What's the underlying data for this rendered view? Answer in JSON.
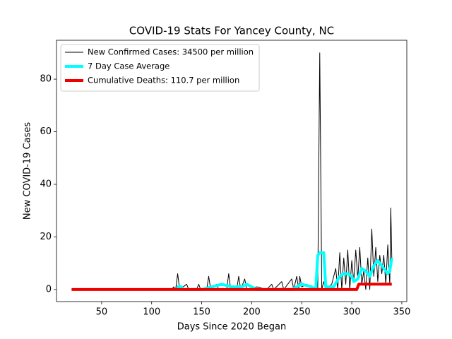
{
  "chart_data": {
    "type": "line",
    "title": "COVID-19 Stats For Yancey County, NC",
    "x_label": "Days Since 2020 Began",
    "y_label": "New COVID-19 Cases",
    "xlim": [
      4.9,
      355
    ],
    "ylim": [
      -4.6,
      94.8
    ],
    "xticks": [
      50,
      100,
      150,
      200,
      250,
      300,
      350
    ],
    "yticks": [
      0,
      20,
      40,
      60,
      80
    ],
    "legend": "upper left",
    "series": [
      {
        "name": "New Confirmed Cases: 34500 per million",
        "color": "#000000",
        "width": 1,
        "x": [
          20,
          120,
          122,
          124,
          126,
          128,
          135,
          137,
          145,
          147,
          149,
          155,
          157,
          159,
          165,
          167,
          175,
          177,
          179,
          185,
          187,
          189,
          193,
          195,
          205,
          215,
          220,
          222,
          230,
          232,
          240,
          242,
          245,
          247,
          248,
          250,
          255,
          262,
          266,
          268,
          270,
          272,
          274,
          280,
          284,
          286,
          288,
          290,
          292,
          294,
          296,
          298,
          300,
          302,
          304,
          306,
          308,
          310,
          312,
          314,
          316,
          318,
          320,
          322,
          324,
          326,
          328,
          330,
          332,
          334,
          336,
          338,
          339,
          340
        ],
        "values": [
          0,
          0,
          1,
          0,
          6,
          0,
          2,
          0,
          0,
          2,
          0,
          0,
          5,
          0,
          2,
          0,
          0,
          6,
          0,
          0,
          5,
          0,
          4,
          0,
          1,
          0,
          2,
          0,
          3,
          0,
          4,
          0,
          5,
          0,
          5,
          1,
          2,
          0,
          0,
          90,
          0,
          3,
          0,
          2,
          8,
          0,
          14,
          0,
          12,
          2,
          15,
          0,
          11,
          3,
          15,
          4,
          16,
          2,
          7,
          0,
          12,
          0,
          23,
          5,
          16,
          3,
          13,
          6,
          13,
          2,
          17,
          2,
          31,
          12
        ]
      },
      {
        "name": "7 Day Case Average",
        "color": "#00ffff",
        "width": 4,
        "x": [
          125,
          130,
          131,
          150,
          160,
          170,
          180,
          190,
          195,
          200,
          205,
          240,
          250,
          260,
          264,
          266,
          268,
          272,
          274,
          282,
          288,
          292,
          296,
          300,
          302,
          306,
          310,
          314,
          318,
          322,
          326,
          330,
          334,
          336,
          338,
          340
        ],
        "values": [
          1,
          1,
          0,
          0,
          1,
          2,
          1,
          1,
          2,
          1,
          0,
          0,
          2,
          1,
          0,
          13,
          14,
          14,
          1,
          1,
          5,
          6,
          6,
          5,
          3,
          4,
          8,
          7,
          5,
          9,
          11,
          9,
          7,
          6,
          7,
          12
        ]
      },
      {
        "name": "Cumulative Deaths: 110.7 per million",
        "color": "#ee0000",
        "width": 4,
        "x": [
          20,
          305,
          307,
          340
        ],
        "values": [
          0,
          0,
          2,
          2
        ]
      }
    ]
  }
}
